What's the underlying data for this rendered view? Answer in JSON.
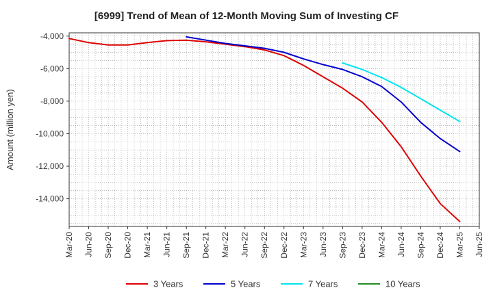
{
  "chart_data": {
    "type": "line",
    "title": "[6999]  Trend of Mean of 12-Month Moving Sum of Investing CF",
    "ylabel": "Amount (million yen)",
    "xlabel": "",
    "ylim": [
      -15700,
      -3800
    ],
    "yticks": [
      -4000,
      -6000,
      -8000,
      -10000,
      -12000,
      -14000
    ],
    "ytick_labels": [
      "-4,000",
      "-6,000",
      "-8,000",
      "-10,000",
      "-12,000",
      "-14,000"
    ],
    "x_range": [
      0,
      63
    ],
    "xticks": [
      0,
      3,
      6,
      9,
      12,
      15,
      18,
      21,
      24,
      27,
      30,
      33,
      36,
      39,
      42,
      45,
      48,
      51,
      54,
      57,
      60,
      63
    ],
    "xtick_labels": [
      "Mar-20",
      "Jun-20",
      "Sep-20",
      "Dec-20",
      "Mar-21",
      "Jun-21",
      "Sep-21",
      "Dec-21",
      "Mar-22",
      "Jun-22",
      "Sep-22",
      "Dec-22",
      "Mar-23",
      "Jun-23",
      "Sep-23",
      "Dec-23",
      "Mar-24",
      "Jun-24",
      "Sep-24",
      "Dec-24",
      "Mar-25",
      "Jun-25"
    ],
    "grid": true,
    "legend_position": "bottom",
    "series": [
      {
        "name": "3 Years",
        "color": "#dd0000",
        "x": [
          0,
          3,
          6,
          9,
          12,
          15,
          18,
          21,
          24,
          27,
          30,
          33,
          36,
          39,
          42,
          45,
          48,
          51,
          54,
          57,
          60
        ],
        "values": [
          -4150,
          -4400,
          -4550,
          -4550,
          -4400,
          -4280,
          -4250,
          -4350,
          -4500,
          -4650,
          -4850,
          -5200,
          -5800,
          -6500,
          -7200,
          -8050,
          -9300,
          -10800,
          -12600,
          -14300,
          -15400
        ]
      },
      {
        "name": "5 Years",
        "color": "#0000cc",
        "x": [
          18,
          21,
          24,
          27,
          30,
          33,
          36,
          39,
          42,
          45,
          48,
          51,
          54,
          57,
          60
        ],
        "values": [
          -4050,
          -4250,
          -4450,
          -4600,
          -4750,
          -5000,
          -5400,
          -5750,
          -6050,
          -6500,
          -7100,
          -8050,
          -9300,
          -10300,
          -11100
        ]
      },
      {
        "name": "7 Years",
        "color": "#00e5ee",
        "x": [
          42,
          45,
          48,
          51,
          54,
          57,
          60
        ],
        "values": [
          -5650,
          -6050,
          -6550,
          -7150,
          -7850,
          -8550,
          -9250
        ]
      },
      {
        "name": "10 Years",
        "color": "#228b22",
        "x": [],
        "values": []
      }
    ]
  }
}
